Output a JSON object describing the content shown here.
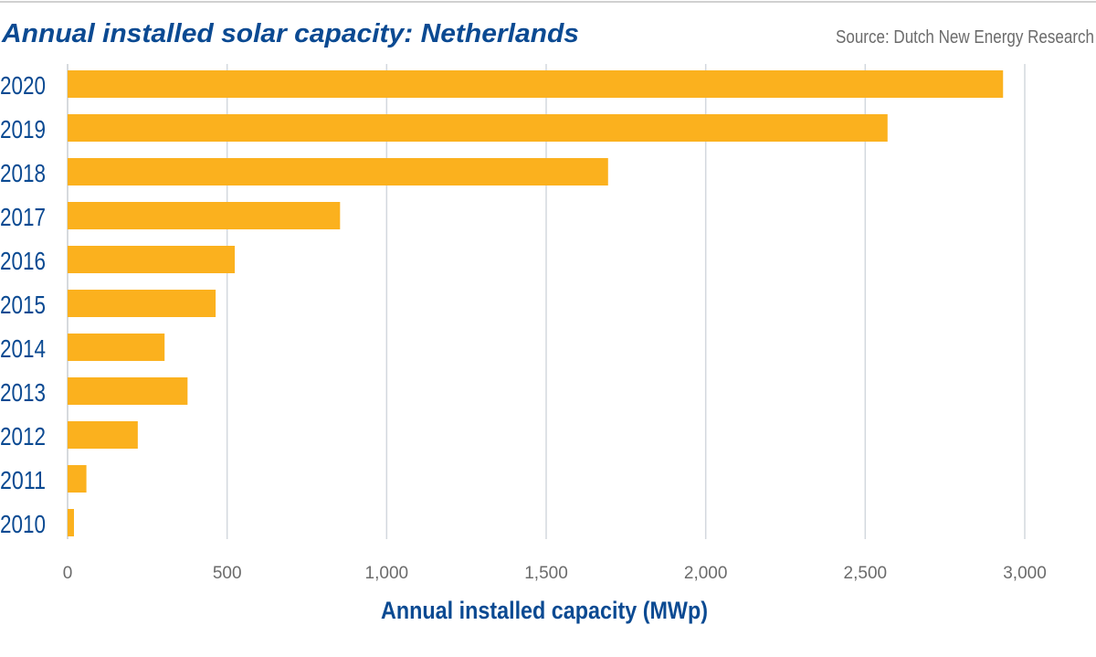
{
  "chart_data": {
    "type": "bar",
    "orientation": "horizontal",
    "title": "Annual installed solar capacity: Netherlands",
    "source": "Source: Dutch New Energy Research",
    "xlabel": "Annual installed capacity (MWp)",
    "ylabel": "",
    "categories": [
      "2020",
      "2019",
      "2018",
      "2017",
      "2016",
      "2015",
      "2014",
      "2013",
      "2012",
      "2011",
      "2010"
    ],
    "values": [
      2932,
      2570,
      1694,
      854,
      524,
      464,
      304,
      376,
      220,
      59,
      20
    ],
    "xlim": [
      0,
      3000
    ],
    "xticks": [
      0,
      500,
      1000,
      1500,
      2000,
      2500,
      3000
    ],
    "xtick_labels": [
      "0",
      "500",
      "1,000",
      "1,500",
      "2,000",
      "2,500",
      "3,000"
    ],
    "grid": "vertical",
    "legend": "none",
    "colors": {
      "bar": "#FBB11E",
      "title": "#0B4A92",
      "grid": "#D3D8DE",
      "tick": "#6B6B6B"
    }
  }
}
